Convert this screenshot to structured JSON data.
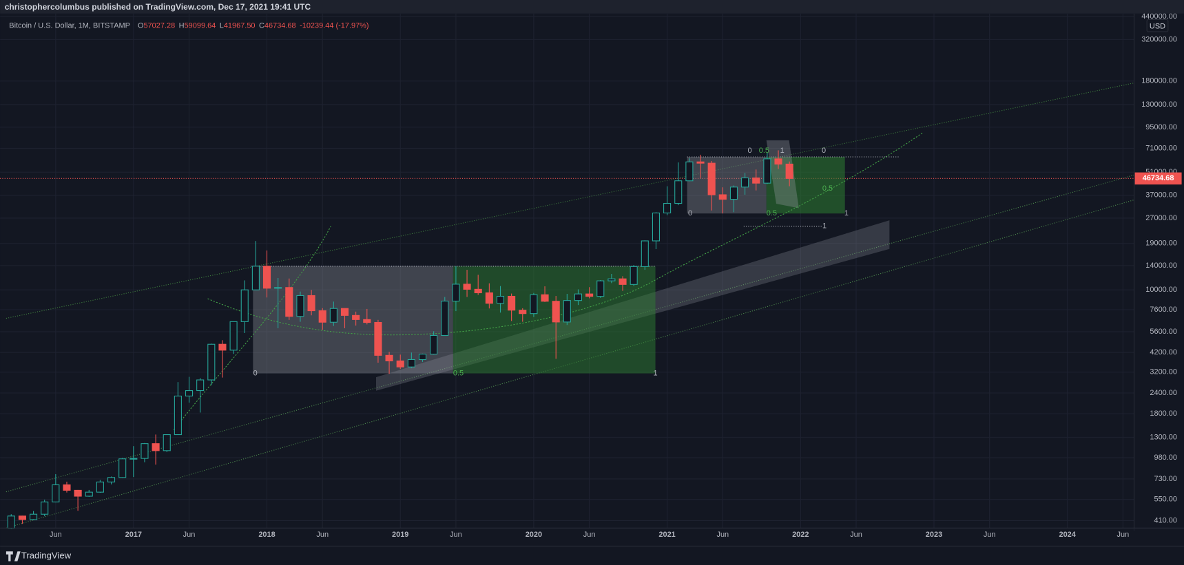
{
  "header": {
    "publisher": "christophercolumbus published on TradingView.com, Dec 17, 2021 19:41 UTC"
  },
  "chart_data": {
    "type": "candlestick",
    "title": "Bitcoin / U.S. Dollar, 1M, BITSTAMP",
    "ohlc_legend": [
      {
        "key": "O",
        "value": "57027.28"
      },
      {
        "key": "H",
        "value": "59099.64"
      },
      {
        "key": "L",
        "value": "41967.50"
      },
      {
        "key": "C",
        "value": "46734.68"
      },
      {
        "key": "",
        "value": "-10239.44 (-17.97%)"
      }
    ],
    "currency": "USD",
    "log": true,
    "grid": true,
    "up_color": "#26a69a",
    "down_color": "#ef5350",
    "x": [
      "2016-02",
      "2016-03",
      "2016-04",
      "2016-05",
      "2016-06",
      "2016-07",
      "2016-08",
      "2016-09",
      "2016-10",
      "2016-11",
      "2016-12",
      "2017-01",
      "2017-02",
      "2017-03",
      "2017-04",
      "2017-05",
      "2017-06",
      "2017-07",
      "2017-08",
      "2017-09",
      "2017-10",
      "2017-11",
      "2017-12",
      "2018-01",
      "2018-02",
      "2018-03",
      "2018-04",
      "2018-05",
      "2018-06",
      "2018-07",
      "2018-08",
      "2018-09",
      "2018-10",
      "2018-11",
      "2018-12",
      "2019-01",
      "2019-02",
      "2019-03",
      "2019-04",
      "2019-05",
      "2019-06",
      "2019-07",
      "2019-08",
      "2019-09",
      "2019-10",
      "2019-11",
      "2019-12",
      "2020-01",
      "2020-02",
      "2020-03",
      "2020-04",
      "2020-05",
      "2020-06",
      "2020-07",
      "2020-08",
      "2020-09",
      "2020-10",
      "2020-11",
      "2020-12",
      "2021-01",
      "2021-02",
      "2021-03",
      "2021-04",
      "2021-05",
      "2021-06",
      "2021-07",
      "2021-08",
      "2021-09",
      "2021-10",
      "2021-11",
      "2021-12"
    ],
    "open": [
      369,
      437,
      416,
      448,
      531,
      673,
      624,
      575,
      608,
      700,
      745,
      964,
      970,
      1190,
      1080,
      1348,
      2300,
      2480,
      2875,
      4710,
      4340,
      6440,
      10000,
      13880,
      10230,
      10330,
      6925,
      9240,
      7490,
      6390,
      7730,
      7020,
      6630,
      6370,
      4040,
      3740,
      3440,
      3810,
      4110,
      5320,
      8560,
      10820,
      10080,
      9600,
      8300,
      9150,
      7550,
      7200,
      9350,
      8540,
      6410,
      8630,
      9450,
      9140,
      11330,
      11650,
      10780,
      13800,
      19700,
      28990,
      33110,
      45240,
      58800,
      57750,
      37300,
      35040,
      41490,
      47100,
      43800,
      61300,
      57027.28
    ],
    "high": [
      448,
      439,
      468,
      548,
      780,
      703,
      627,
      627,
      720,
      755,
      975,
      1150,
      1200,
      1350,
      1350,
      2790,
      3000,
      2950,
      4750,
      4980,
      6450,
      11400,
      19666,
      17250,
      11780,
      11700,
      9770,
      9990,
      7760,
      8500,
      7750,
      7400,
      7680,
      6600,
      4240,
      4080,
      4200,
      4140,
      5640,
      9060,
      13880,
      13200,
      12320,
      10950,
      10540,
      9500,
      7750,
      9580,
      10500,
      9190,
      9460,
      10070,
      10380,
      11450,
      12470,
      12080,
      14100,
      19840,
      29300,
      41950,
      58350,
      61780,
      64900,
      59500,
      41330,
      42400,
      50500,
      52900,
      67000,
      69000,
      59099.64
    ],
    "low": [
      366,
      392,
      412,
      436,
      528,
      605,
      470,
      570,
      603,
      677,
      740,
      750,
      920,
      890,
      1060,
      1350,
      2100,
      1830,
      2670,
      2970,
      4120,
      5500,
      10000,
      9000,
      5880,
      6600,
      6430,
      7030,
      5750,
      6070,
      5880,
      6100,
      6200,
      3650,
      3130,
      3350,
      3380,
      3690,
      4080,
      5320,
      7450,
      9060,
      9320,
      7730,
      7300,
      6500,
      6430,
      6870,
      8450,
      3850,
      6150,
      8110,
      8900,
      8950,
      10980,
      9860,
      10550,
      13200,
      17570,
      28130,
      32300,
      45000,
      47000,
      30000,
      28800,
      29300,
      37330,
      39600,
      43300,
      53250,
      41967.5
    ],
    "close": [
      437,
      416,
      448,
      531,
      673,
      624,
      575,
      608,
      700,
      745,
      964,
      970,
      1190,
      1080,
      1348,
      2300,
      2480,
      2875,
      4710,
      4340,
      6440,
      10000,
      13880,
      10230,
      10330,
      6925,
      9240,
      7490,
      6390,
      7730,
      7020,
      6630,
      6370,
      4040,
      3740,
      3440,
      3810,
      4110,
      5320,
      8560,
      10820,
      10080,
      9600,
      8300,
      9150,
      7550,
      7200,
      9350,
      8540,
      6410,
      8630,
      9450,
      9140,
      11330,
      11650,
      10780,
      13800,
      19700,
      28990,
      33110,
      45240,
      58800,
      57750,
      37300,
      35040,
      41490,
      47100,
      43800,
      61300,
      57000,
      46734.68
    ],
    "ylim": [
      370,
      458000
    ],
    "yticks": [
      {
        "value": 410,
        "label": "410.00"
      },
      {
        "value": 550,
        "label": "550.00"
      },
      {
        "value": 730,
        "label": "730.00"
      },
      {
        "value": 980,
        "label": "980.00"
      },
      {
        "value": 1300,
        "label": "1300.00"
      },
      {
        "value": 1800,
        "label": "1800.00"
      },
      {
        "value": 2400,
        "label": "2400.00"
      },
      {
        "value": 3200,
        "label": "3200.00"
      },
      {
        "value": 4200,
        "label": "4200.00"
      },
      {
        "value": 5600,
        "label": "5600.00"
      },
      {
        "value": 7600,
        "label": "7600.00"
      },
      {
        "value": 10000,
        "label": "10000.00"
      },
      {
        "value": 14000,
        "label": "14000.00"
      },
      {
        "value": 19000,
        "label": "19000.00"
      },
      {
        "value": 27000,
        "label": "27000.00"
      },
      {
        "value": 37000,
        "label": "37000.00"
      },
      {
        "value": 51000,
        "label": "51000.00"
      },
      {
        "value": 71000,
        "label": "71000.00"
      },
      {
        "value": 95000,
        "label": "95000.00"
      },
      {
        "value": 130000,
        "label": "130000.00"
      },
      {
        "value": 180000,
        "label": "180000.00"
      },
      {
        "value": 320000,
        "label": "320000.00"
      },
      {
        "value": 440000,
        "label": "440000.00"
      }
    ],
    "xlim": [
      "2016-01",
      "2024-07"
    ],
    "xticks": [
      {
        "value": "2016-06",
        "label": "Jun"
      },
      {
        "value": "2017-01",
        "label": "2017"
      },
      {
        "value": "2017-06",
        "label": "Jun"
      },
      {
        "value": "2018-01",
        "label": "2018"
      },
      {
        "value": "2018-06",
        "label": "Jun"
      },
      {
        "value": "2019-01",
        "label": "2019"
      },
      {
        "value": "2019-06",
        "label": "Jun"
      },
      {
        "value": "2020-01",
        "label": "2020"
      },
      {
        "value": "2020-06",
        "label": "Jun"
      },
      {
        "value": "2021-01",
        "label": "2021"
      },
      {
        "value": "2021-06",
        "label": "Jun"
      },
      {
        "value": "2022-01",
        "label": "2022"
      },
      {
        "value": "2022-06",
        "label": "Jun"
      },
      {
        "value": "2023-01",
        "label": "2023"
      },
      {
        "value": "2023-06",
        "label": "Jun"
      },
      {
        "value": "2024-01",
        "label": "2024"
      },
      {
        "value": "2024-06",
        "label": "Jun"
      }
    ],
    "last_price": {
      "value": 46734.68,
      "label": "46734.68"
    },
    "drawing_labels": [
      "0",
      "0.5",
      "1",
      "0",
      "0.5",
      "1",
      "0",
      "0.5",
      "1",
      "0",
      "0.5",
      "1"
    ]
  },
  "footer": {
    "brand": "TradingView"
  }
}
